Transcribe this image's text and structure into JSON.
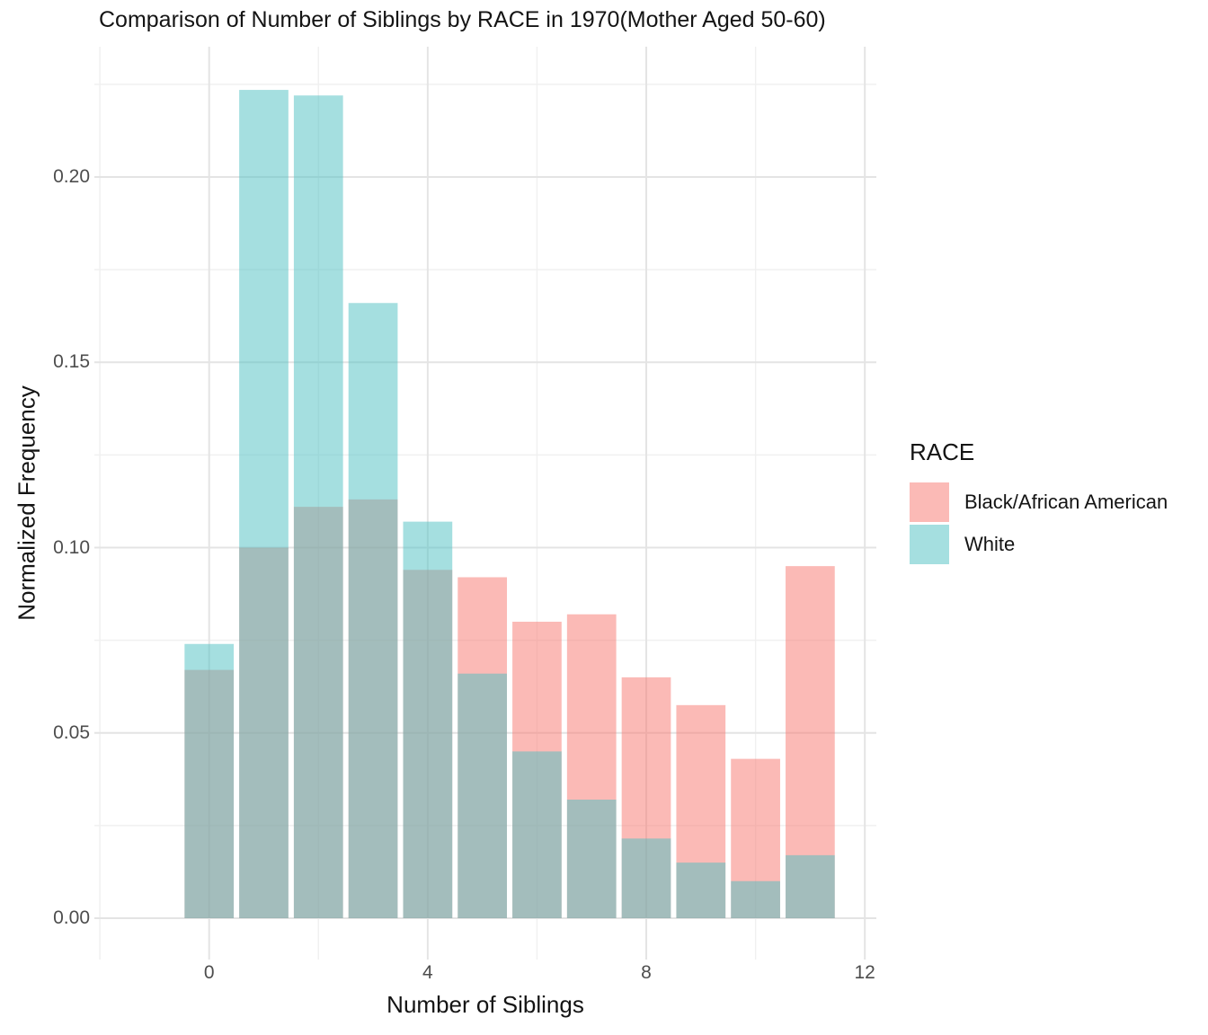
{
  "chart_data": {
    "type": "bar",
    "variant": "overlaid-transparent-histogram",
    "title": "Comparison of Number of Siblings by RACE in 1970(Mother Aged 50-60)",
    "xlabel": "Number of Siblings",
    "ylabel": "Normalized Frequency",
    "legend": {
      "title": "RACE",
      "position": "right",
      "entries": [
        {
          "label": "Black/African American",
          "base_color": "#F8766D"
        },
        {
          "label": "White",
          "base_color": "#4BBFC1"
        }
      ]
    },
    "fill_alpha": 0.5,
    "bar_width": 0.9,
    "x": [
      0,
      1,
      2,
      3,
      4,
      5,
      6,
      7,
      8,
      9,
      10,
      11
    ],
    "series": [
      {
        "name": "Black/African American",
        "base_color": "#F8766D",
        "values": [
          0.067,
          0.1,
          0.111,
          0.113,
          0.094,
          0.092,
          0.08,
          0.082,
          0.065,
          0.0575,
          0.043,
          0.095
        ]
      },
      {
        "name": "White",
        "base_color": "#4BBFC1",
        "values": [
          0.074,
          0.2235,
          0.222,
          0.166,
          0.107,
          0.066,
          0.045,
          0.032,
          0.0215,
          0.015,
          0.01,
          0.017
        ]
      }
    ],
    "xlim": [
      -2.1,
      12.2
    ],
    "ylim": [
      -0.0113,
      0.2353
    ],
    "grid": true,
    "x_ticks": {
      "major": [
        0,
        4,
        8,
        12
      ],
      "minor": [
        -2,
        2,
        6,
        10
      ],
      "labels": [
        "0",
        "4",
        "8",
        "12"
      ]
    },
    "y_ticks": {
      "major": [
        0,
        0.05,
        0.1,
        0.15,
        0.2
      ],
      "minor": [
        0.025,
        0.075,
        0.125,
        0.175,
        0.225
      ],
      "labels": [
        "0.00",
        "0.05",
        "0.10",
        "0.15",
        "0.20"
      ]
    }
  },
  "colors": {
    "background": "#FFFFFF",
    "grid_major": "#E4E4E4",
    "grid_minor": "#F0F0F0",
    "tick_label": "#4D4D4D",
    "text": "#141414"
  }
}
